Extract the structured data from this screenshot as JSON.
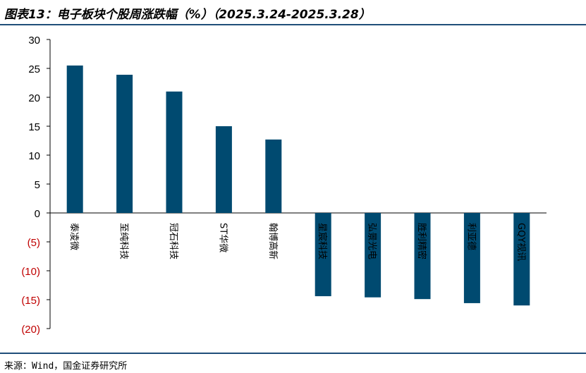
{
  "header": {
    "title": "图表13：电子板块个股周涨跌幅（%）（2025.3.24-2025.3.28）"
  },
  "footer": {
    "source": "来源：Wind，国金证券研究所"
  },
  "colors": {
    "bar": "#004a70",
    "negative_tick": "#c00000",
    "rule": "#1f4e79",
    "axis": "#000000"
  },
  "chart_data": {
    "type": "bar",
    "title": "",
    "xlabel": "",
    "ylabel": "",
    "ylim": [
      -20,
      30
    ],
    "yticks": [
      30,
      25,
      20,
      15,
      10,
      5,
      0,
      -5,
      -10,
      -15,
      -20
    ],
    "ytick_labels": [
      "30",
      "25",
      "20",
      "15",
      "10",
      "5",
      "0",
      "(5)",
      "(10)",
      "(15)",
      "(20)"
    ],
    "categories": [
      "泰凌微",
      "至纯科技",
      "冠石科技",
      "ST华微",
      "翰博高新",
      "星宸科技",
      "弘景光电",
      "胜利精密",
      "利亚德",
      "GQY视讯"
    ],
    "values": [
      25.5,
      23.9,
      21.0,
      15.0,
      12.7,
      -14.4,
      -14.6,
      -14.9,
      -15.6,
      -16.0
    ]
  }
}
